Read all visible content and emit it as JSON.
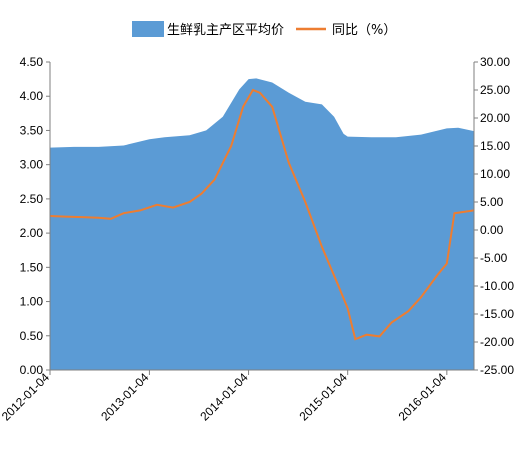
{
  "chart_data": {
    "type": "area",
    "legend": {
      "position": "top",
      "area_label": "生鲜乳主产区平均价",
      "line_label": "同比（%）"
    },
    "colors": {
      "area": "#5b9bd5",
      "line": "#ed7d31"
    },
    "x_tick_labels": [
      "2012-01-04",
      "2013-01-04",
      "2014-01-04",
      "2015-01-04",
      "2016-01-04"
    ],
    "x_range": [
      "2012-01-04",
      "2016-04-13"
    ],
    "y_left": {
      "range": [
        0,
        4.5
      ],
      "ticks": [
        "0.00",
        "0.50",
        "1.00",
        "1.50",
        "2.00",
        "2.50",
        "3.00",
        "3.50",
        "4.00",
        "4.50"
      ]
    },
    "y_right": {
      "range": [
        -25,
        30
      ],
      "ticks": [
        "-25.00",
        "-20.00",
        "-15.00",
        "-10.00",
        "-5.00",
        "0.00",
        "5.00",
        "10.00",
        "15.00",
        "20.00",
        "25.00",
        "30.00"
      ]
    },
    "series": [
      {
        "name": "生鲜乳主产区平均价",
        "kind": "area",
        "axis": "left",
        "points": [
          [
            "2012-01-04",
            3.25
          ],
          [
            "2012-04-01",
            3.26
          ],
          [
            "2012-07-01",
            3.26
          ],
          [
            "2012-10-01",
            3.28
          ],
          [
            "2013-01-04",
            3.37
          ],
          [
            "2013-03-01",
            3.4
          ],
          [
            "2013-06-01",
            3.43
          ],
          [
            "2013-08-01",
            3.5
          ],
          [
            "2013-10-01",
            3.7
          ],
          [
            "2013-12-01",
            4.1
          ],
          [
            "2014-01-04",
            4.25
          ],
          [
            "2014-02-01",
            4.26
          ],
          [
            "2014-04-01",
            4.2
          ],
          [
            "2014-06-01",
            4.05
          ],
          [
            "2014-08-01",
            3.92
          ],
          [
            "2014-10-01",
            3.88
          ],
          [
            "2014-11-15",
            3.7
          ],
          [
            "2014-12-20",
            3.45
          ],
          [
            "2015-01-04",
            3.41
          ],
          [
            "2015-04-01",
            3.4
          ],
          [
            "2015-07-01",
            3.4
          ],
          [
            "2015-10-01",
            3.44
          ],
          [
            "2016-01-04",
            3.53
          ],
          [
            "2016-02-15",
            3.54
          ],
          [
            "2016-04-13",
            3.49
          ]
        ]
      },
      {
        "name": "同比（%）",
        "kind": "line",
        "axis": "right",
        "points": [
          [
            "2012-01-04",
            2.5
          ],
          [
            "2012-03-01",
            2.4
          ],
          [
            "2012-05-01",
            2.3
          ],
          [
            "2012-07-01",
            2.2
          ],
          [
            "2012-08-15",
            2.0
          ],
          [
            "2012-10-01",
            3.0
          ],
          [
            "2012-12-01",
            3.5
          ],
          [
            "2013-02-01",
            4.5
          ],
          [
            "2013-04-01",
            4.0
          ],
          [
            "2013-06-01",
            5.0
          ],
          [
            "2013-07-15",
            6.5
          ],
          [
            "2013-09-01",
            9.0
          ],
          [
            "2013-11-01",
            15.0
          ],
          [
            "2013-12-15",
            22.0
          ],
          [
            "2014-01-20",
            25.0
          ],
          [
            "2014-02-15",
            24.5
          ],
          [
            "2014-04-01",
            22.0
          ],
          [
            "2014-06-01",
            12.0
          ],
          [
            "2014-08-01",
            5.0
          ],
          [
            "2014-10-01",
            -3.0
          ],
          [
            "2014-12-01",
            -10.0
          ],
          [
            "2015-01-04",
            -14.0
          ],
          [
            "2015-02-01",
            -19.5
          ],
          [
            "2015-03-15",
            -18.7
          ],
          [
            "2015-05-01",
            -19.0
          ],
          [
            "2015-06-15",
            -16.5
          ],
          [
            "2015-08-15",
            -14.5
          ],
          [
            "2015-10-01",
            -12.0
          ],
          [
            "2015-12-01",
            -8.0
          ],
          [
            "2016-01-04",
            -6.0
          ],
          [
            "2016-02-01",
            3.0
          ],
          [
            "2016-04-13",
            3.5
          ]
        ]
      }
    ]
  }
}
